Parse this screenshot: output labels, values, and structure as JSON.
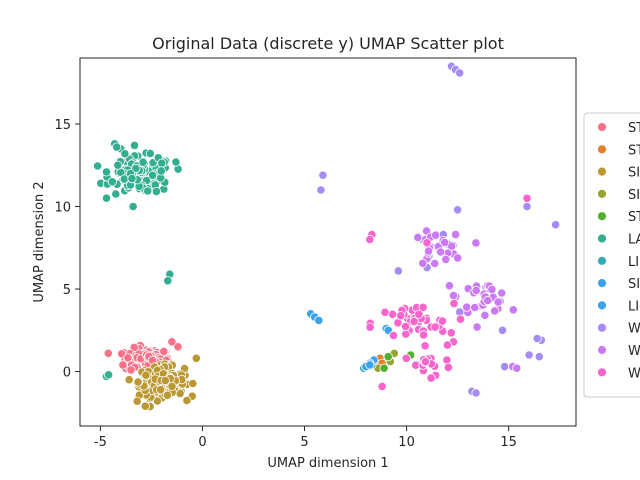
{
  "chart_data": {
    "type": "scatter",
    "title": "Original Data (discrete y)  UMAP Scatter plot",
    "xlabel": "UMAP dimension 1",
    "ylabel": "UMAP dimension 2",
    "xlim": [
      -6,
      18.3
    ],
    "ylim": [
      -3.3,
      19
    ],
    "xticks": [
      -5,
      0,
      5,
      10,
      15
    ],
    "yticks": [
      0,
      5,
      10,
      15
    ],
    "grid": false,
    "legend_position": "right",
    "series": [
      {
        "name": "ST",
        "color": "#f77189",
        "clusters": [
          {
            "x": -2.7,
            "y": 0.7,
            "sx": 0.55,
            "sy": 0.35,
            "n": 180
          }
        ],
        "points": [
          [
            -1.5,
            1.8
          ],
          [
            -1.2,
            1.5
          ],
          [
            -3.5,
            0.1
          ]
        ]
      },
      {
        "name": "ST",
        "color": "#e1812c",
        "clusters": [],
        "points": [
          [
            8.5,
            0.6
          ],
          [
            8.7,
            0.8
          ],
          [
            8.8,
            0.5
          ]
        ]
      },
      {
        "name": "SI",
        "color": "#bb9832",
        "clusters": [
          {
            "x": -2.0,
            "y": -0.6,
            "sx": 0.55,
            "sy": 0.45,
            "n": 180
          }
        ],
        "points": [
          [
            -0.3,
            0.8
          ],
          [
            -2.8,
            -2.1
          ],
          [
            -3.2,
            -1.8
          ]
        ]
      },
      {
        "name": "SI",
        "color": "#97a431",
        "clusters": [],
        "points": [
          [
            9.2,
            0.6
          ],
          [
            9.4,
            1.1
          ],
          [
            8.6,
            0.2
          ]
        ]
      },
      {
        "name": "ST",
        "color": "#50b131",
        "clusters": [],
        "points": [
          [
            10.2,
            1.0
          ],
          [
            8.9,
            0.2
          ],
          [
            9.1,
            0.9
          ]
        ]
      },
      {
        "name": "LA",
        "color": "#34ae91",
        "clusters": [
          {
            "x": -3.0,
            "y": 11.9,
            "sx": 0.75,
            "sy": 0.55,
            "n": 140
          }
        ],
        "points": [
          [
            -4.3,
            13.8
          ],
          [
            -4.0,
            13.5
          ],
          [
            -3.8,
            13.2
          ],
          [
            -4.2,
            13.6
          ],
          [
            -1.3,
            12.7
          ],
          [
            -1.6,
            5.9
          ],
          [
            -1.7,
            5.5
          ],
          [
            -4.7,
            -0.3
          ],
          [
            -4.6,
            -0.2
          ],
          [
            -4.7,
            12.1
          ],
          [
            -3.4,
            10.0
          ]
        ]
      },
      {
        "name": "LI",
        "color": "#37abb5",
        "clusters": [],
        "points": [
          [
            7.9,
            0.2
          ],
          [
            8.1,
            0.3
          ],
          [
            8.3,
            0.4
          ]
        ]
      },
      {
        "name": "SI",
        "color": "#3ba3ec",
        "clusters": [],
        "points": [
          [
            8.4,
            0.7
          ],
          [
            8.2,
            0.5
          ],
          [
            8.0,
            0.3
          ]
        ]
      },
      {
        "name": "LI",
        "color": "#3ba3ec",
        "clusters": [],
        "points": [
          [
            5.3,
            3.5
          ],
          [
            5.5,
            3.3
          ],
          [
            5.7,
            3.1
          ],
          [
            9.0,
            2.6
          ],
          [
            9.1,
            2.5
          ],
          [
            8.2,
            0.4
          ]
        ]
      },
      {
        "name": "W",
        "color": "#a48cf4",
        "clusters": [],
        "points": [
          [
            12.2,
            18.5
          ],
          [
            12.4,
            18.3
          ],
          [
            12.6,
            18.1
          ],
          [
            5.9,
            11.9
          ],
          [
            5.8,
            11.0
          ],
          [
            12.5,
            9.8
          ],
          [
            15.9,
            10.0
          ],
          [
            17.3,
            8.9
          ],
          [
            11.0,
            8.1
          ],
          [
            11.1,
            7.0
          ],
          [
            11.0,
            6.3
          ],
          [
            9.6,
            6.1
          ],
          [
            12.6,
            3.6
          ],
          [
            14.7,
            2.5
          ],
          [
            16.6,
            1.9
          ],
          [
            16.4,
            2.0
          ],
          [
            14.8,
            0.3
          ],
          [
            16.0,
            1.0
          ],
          [
            16.5,
            0.9
          ],
          [
            13.2,
            -1.2
          ],
          [
            13.4,
            -1.3
          ],
          [
            11.8,
            8.3
          ],
          [
            10.8,
            8.0
          ]
        ]
      },
      {
        "name": "W",
        "color": "#cc7af4",
        "clusters": [
          {
            "x": 13.8,
            "y": 4.5,
            "sx": 0.6,
            "sy": 0.45,
            "n": 35
          },
          {
            "x": 11.5,
            "y": 7.4,
            "sx": 0.6,
            "sy": 0.5,
            "n": 25
          }
        ],
        "points": [
          [
            12.1,
            5.2
          ],
          [
            12.3,
            4.6
          ],
          [
            15.2,
            0.3
          ],
          [
            15.4,
            0.2
          ],
          [
            12.4,
            8.3
          ]
        ]
      },
      {
        "name": "W",
        "color": "#f565cc",
        "clusters": [
          {
            "x": 10.3,
            "y": 2.9,
            "sx": 1.0,
            "sy": 0.6,
            "n": 40
          },
          {
            "x": 11.0,
            "y": 0.4,
            "sx": 0.6,
            "sy": 0.35,
            "n": 18
          }
        ],
        "points": [
          [
            8.3,
            8.3
          ],
          [
            8.2,
            8.0
          ],
          [
            15.9,
            10.5
          ],
          [
            12.3,
            1.8
          ],
          [
            12.0,
            1.6
          ],
          [
            8.8,
            -0.9
          ],
          [
            11.0,
            7.8
          ],
          [
            11.2,
            -0.4
          ]
        ]
      }
    ]
  }
}
